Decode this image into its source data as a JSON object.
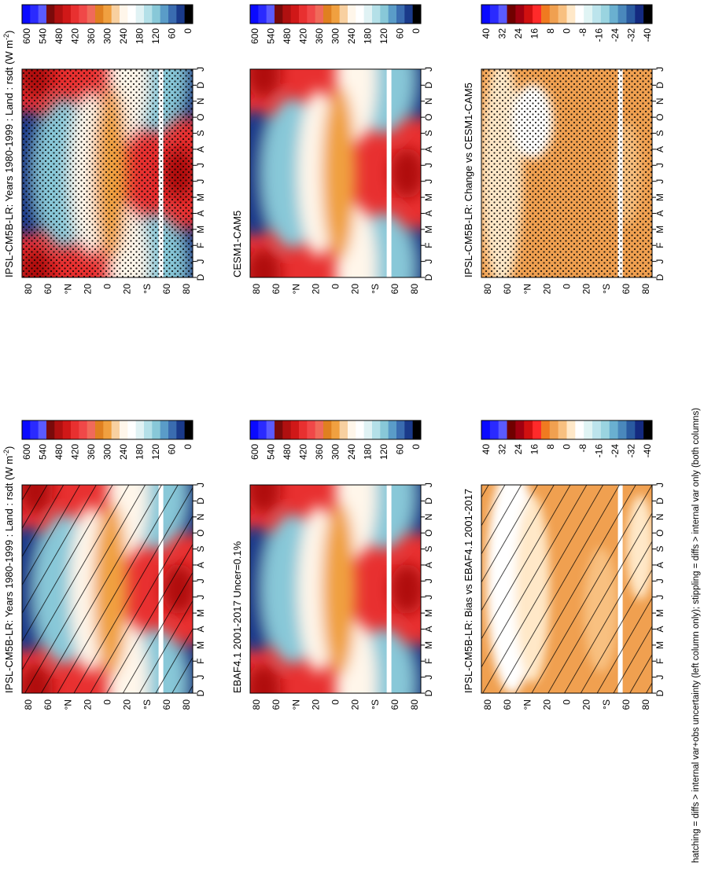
{
  "figure": {
    "footer": "hatching = diffs > internal var+obs uncertainty (left column only); stippling = diffs > internal var only (both columns)"
  },
  "chart_data": [
    {
      "type": "heatmap",
      "id": "model-left",
      "title": "IPSL-CM5B-LR: Years 1980-1999 : Land : rsdt (W m",
      "title_sup": "-2",
      "title_end": ")",
      "months": [
        "D",
        "J",
        "F",
        "M",
        "A",
        "M",
        "J",
        "J",
        "A",
        "S",
        "O",
        "N",
        "D",
        "J"
      ],
      "lat_ticks": [
        "80",
        "60",
        "°N",
        "20",
        "0",
        "20",
        "°S",
        "60",
        "80"
      ],
      "overlay": "hatching",
      "colorbar": [
        "600",
        "540",
        "480",
        "420",
        "360",
        "300",
        "240",
        "180",
        "120",
        "60",
        "0"
      ]
    },
    {
      "type": "heatmap",
      "id": "model-right",
      "title": "IPSL-CM5B-LR: Years 1980-1999 : Land : rsdt (W m",
      "title_sup": "-2",
      "title_end": ")",
      "months": [
        "D",
        "J",
        "F",
        "M",
        "A",
        "M",
        "J",
        "J",
        "A",
        "S",
        "O",
        "N",
        "D",
        "J"
      ],
      "lat_ticks": [
        "80",
        "60",
        "°N",
        "20",
        "0",
        "20",
        "°S",
        "60",
        "80"
      ],
      "overlay": "stippling",
      "colorbar": [
        "600",
        "540",
        "480",
        "420",
        "360",
        "300",
        "240",
        "180",
        "120",
        "60",
        "0"
      ]
    },
    {
      "type": "heatmap",
      "id": "obs",
      "title": "EBAF4.1 2001-2017 Uncer=0.1%",
      "months": [
        "D",
        "J",
        "F",
        "M",
        "A",
        "M",
        "J",
        "J",
        "A",
        "S",
        "O",
        "N",
        "D",
        "J"
      ],
      "lat_ticks": [
        "80",
        "60",
        "°N",
        "20",
        "0",
        "20",
        "°S",
        "60",
        "80"
      ],
      "overlay": "none",
      "colorbar": [
        "600",
        "540",
        "480",
        "420",
        "360",
        "300",
        "240",
        "180",
        "120",
        "60",
        "0"
      ]
    },
    {
      "type": "heatmap",
      "id": "ref-model",
      "title": "CESM1-CAM5",
      "months": [
        "D",
        "J",
        "F",
        "M",
        "A",
        "M",
        "J",
        "J",
        "A",
        "S",
        "O",
        "N",
        "D",
        "J"
      ],
      "lat_ticks": [
        "80",
        "60",
        "°N",
        "20",
        "0",
        "20",
        "°S",
        "60",
        "80"
      ],
      "overlay": "none",
      "colorbar": [
        "600",
        "540",
        "480",
        "420",
        "360",
        "300",
        "240",
        "180",
        "120",
        "60",
        "0"
      ]
    },
    {
      "type": "heatmap",
      "id": "bias",
      "title": "IPSL-CM5B-LR: Bias vs EBAF4.1 2001-2017",
      "months": [
        "D",
        "J",
        "F",
        "M",
        "A",
        "M",
        "J",
        "J",
        "A",
        "S",
        "O",
        "N",
        "D",
        "J"
      ],
      "lat_ticks": [
        "80",
        "60",
        "°N",
        "20",
        "0",
        "20",
        "°S",
        "60",
        "80"
      ],
      "overlay": "hatching",
      "colorbar": [
        "40",
        "32",
        "24",
        "16",
        "8",
        "0",
        "-8",
        "-16",
        "-24",
        "-32",
        "-40"
      ]
    },
    {
      "type": "heatmap",
      "id": "change",
      "title": "IPSL-CM5B-LR: Change vs CESM1-CAM5",
      "months": [
        "D",
        "J",
        "F",
        "M",
        "A",
        "M",
        "J",
        "J",
        "A",
        "S",
        "O",
        "N",
        "D",
        "J"
      ],
      "lat_ticks": [
        "80",
        "60",
        "°N",
        "20",
        "0",
        "20",
        "°S",
        "60",
        "80"
      ],
      "overlay": "stippling",
      "colorbar": [
        "40",
        "32",
        "24",
        "16",
        "8",
        "0",
        "-8",
        "-16",
        "-24",
        "-32",
        "-40"
      ]
    }
  ],
  "colors": {
    "abs_scale": [
      "#0a0aff",
      "#2a2aff",
      "#5a5aff",
      "#7a0a0a",
      "#b01010",
      "#d01818",
      "#e83030",
      "#f04848",
      "#f06a5a",
      "#e08020",
      "#f0a040",
      "#f8d0a0",
      "#fff6ea",
      "#ffffff",
      "#e0f2f4",
      "#b4e0e8",
      "#88c8d8",
      "#5a9cc8",
      "#3a6cb0",
      "#1a3a8a",
      "#000000"
    ],
    "diff_scale": [
      "#0a0aff",
      "#2a2aff",
      "#5a5aff",
      "#700000",
      "#a00010",
      "#d01010",
      "#ff2a2a",
      "#f07a20",
      "#f0a050",
      "#f8c080",
      "#ffe8c8",
      "#ffffff",
      "#e0f4f4",
      "#bce4ec",
      "#9ad4e0",
      "#6ab0d0",
      "#4a88bc",
      "#2a5aa0",
      "#142a80",
      "#000000"
    ]
  }
}
